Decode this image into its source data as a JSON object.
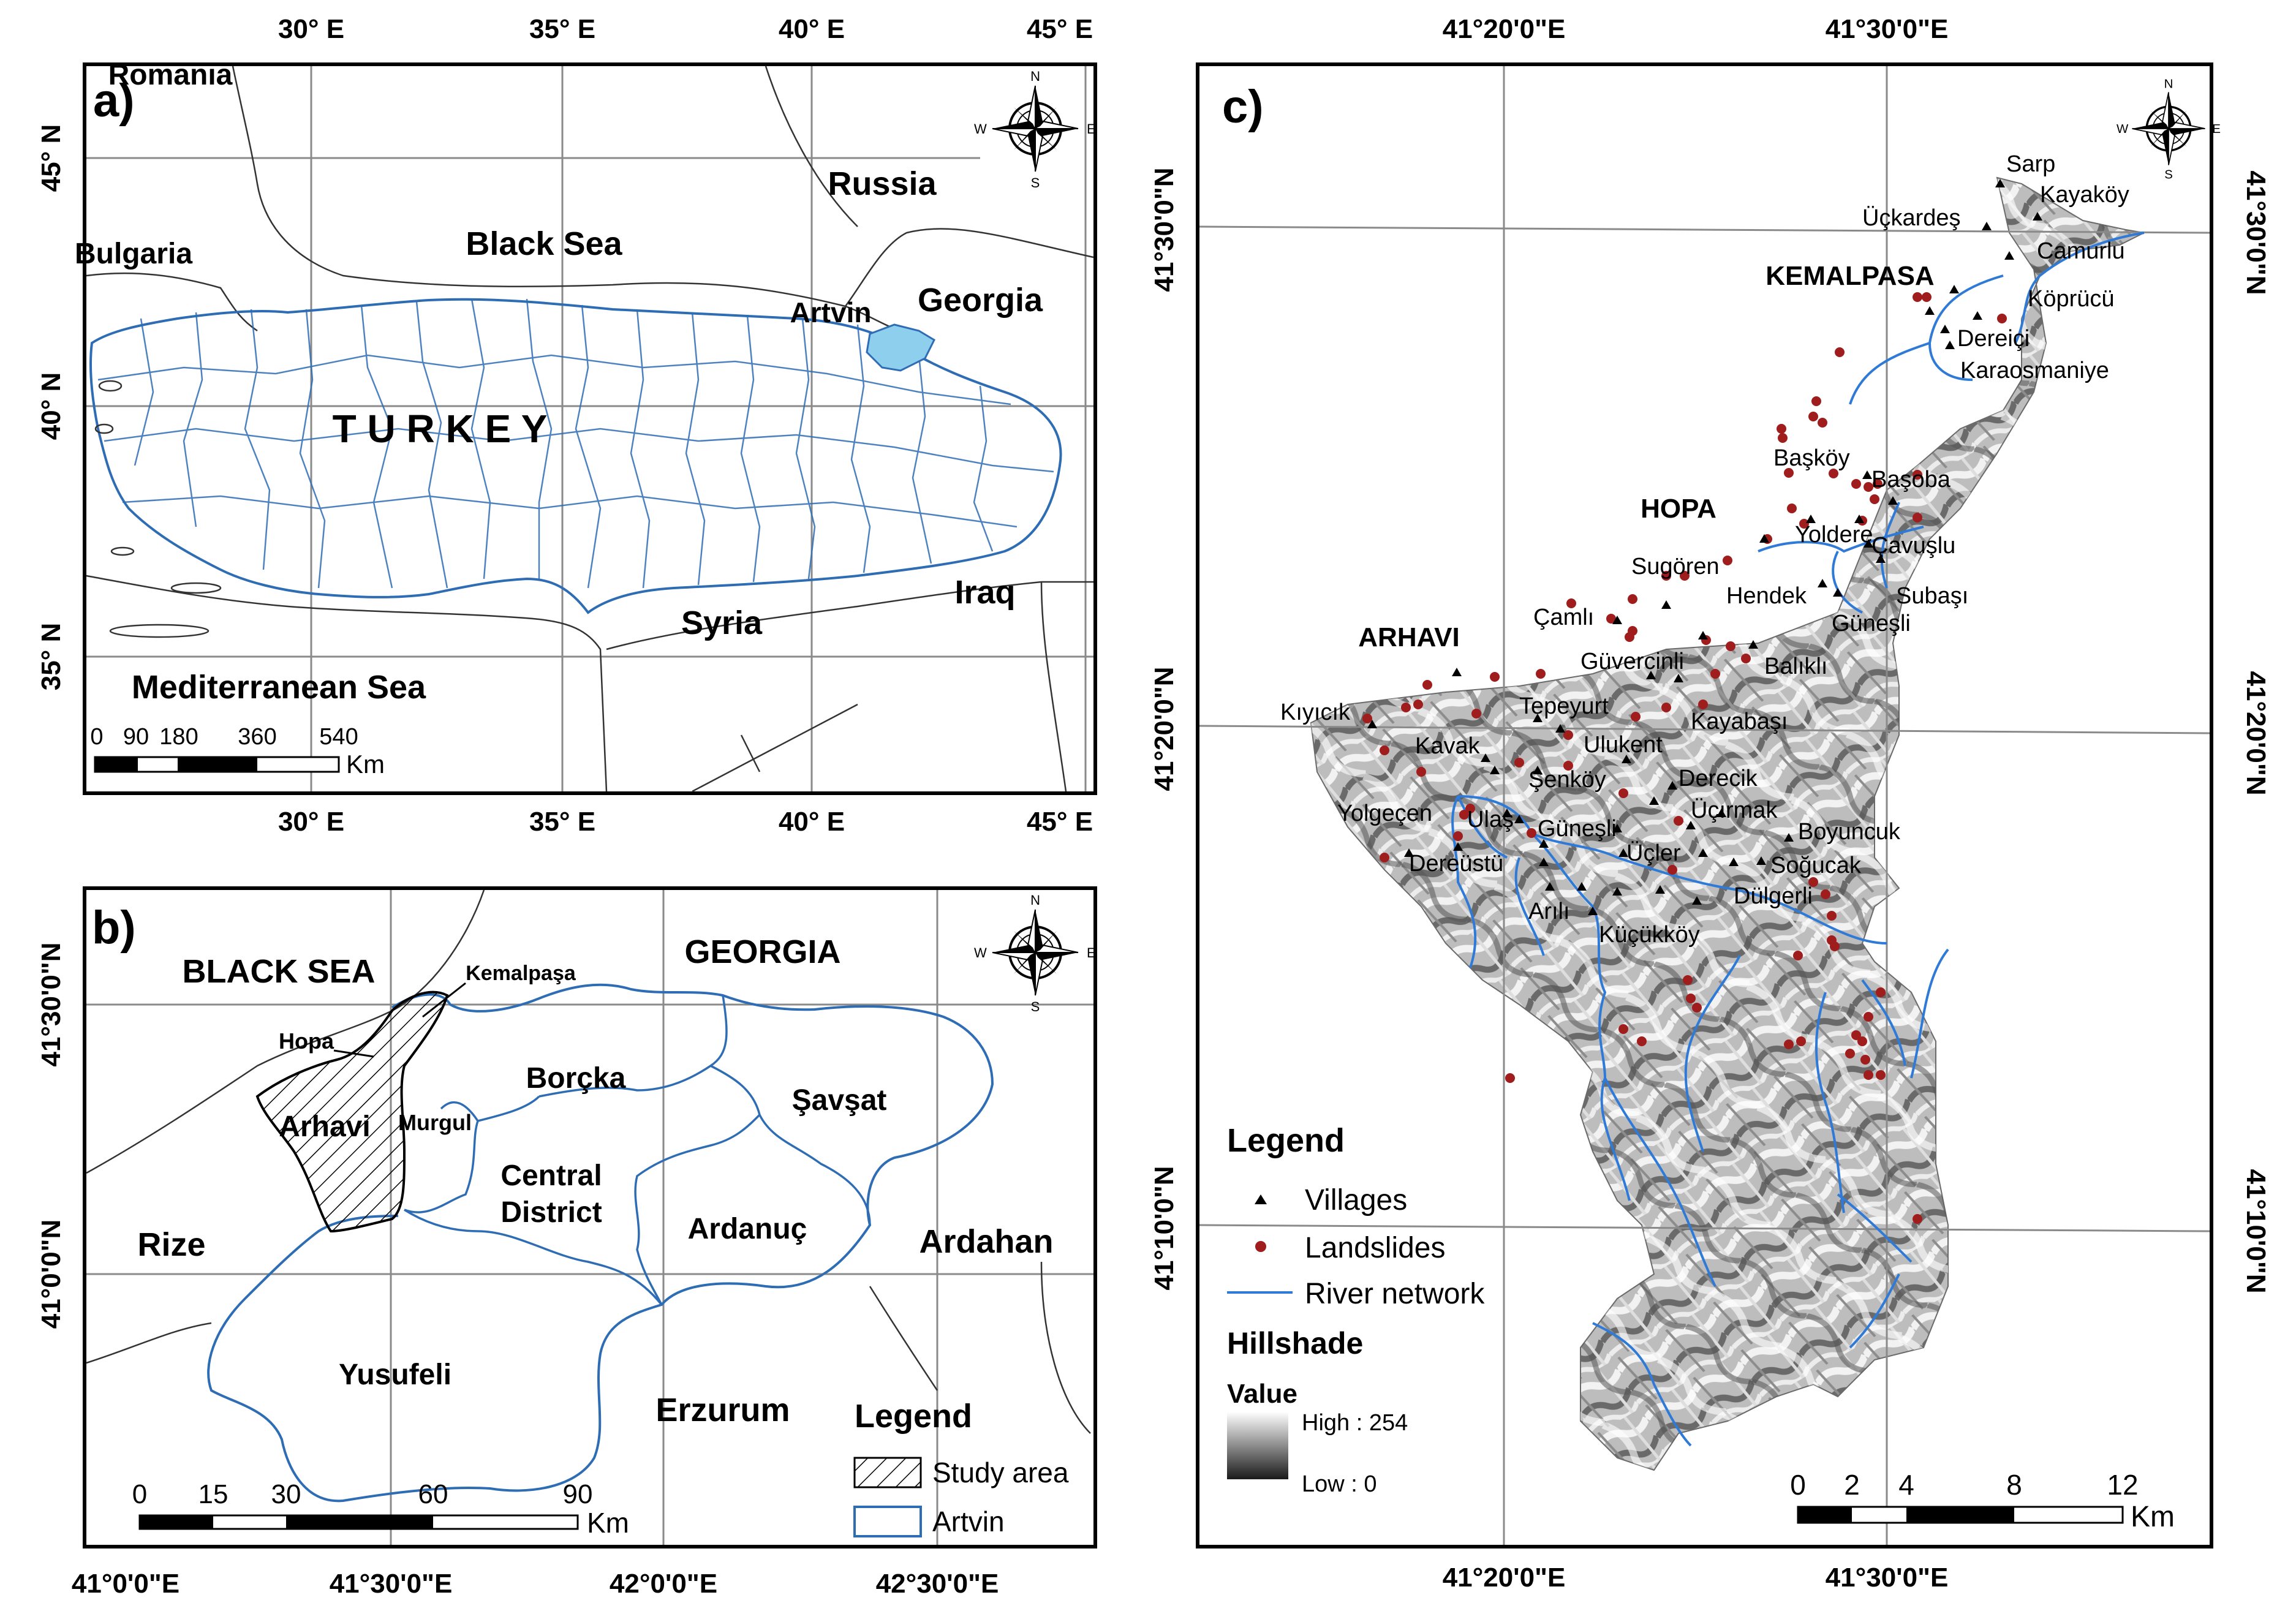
{
  "panel_a": {
    "label": "a)",
    "top_ticks": [
      "30° E",
      "35° E",
      "40° E",
      "45° E"
    ],
    "bottom_ticks": [
      "30° E",
      "35° E",
      "40° E",
      "45° E"
    ],
    "left_ticks": [
      "45° N",
      "40° N",
      "35° N"
    ],
    "places": {
      "romania": "Romania",
      "bulgaria": "Bulgaria",
      "black_sea": "Black Sea",
      "russia": "Russia",
      "artvin": "Artvin",
      "georgia": "Georgia",
      "turkey": "T U R K E Y",
      "syria": "Syria",
      "iraq": "Iraq",
      "mediterranean": "Mediterranean Sea"
    },
    "scale_values": [
      "0",
      "90",
      "180",
      "360",
      "540"
    ],
    "scale_unit": "Km"
  },
  "panel_b": {
    "label": "b)",
    "left_ticks": [
      "41°30'0\"N",
      "41°0'0\"N"
    ],
    "bottom_ticks": [
      "41°0'0\"E",
      "41°30'0\"E",
      "42°0'0\"E",
      "42°30'0\"E"
    ],
    "places": {
      "black_sea": "BLACK SEA",
      "kemalpasa": "Kemalpaşa",
      "georgia": "GEORGIA",
      "hopa": "Hopa",
      "borcka": "Borçka",
      "savsat": "Şavşat",
      "arhavi": "Arhavi",
      "murgul": "Murgul",
      "central": "Central",
      "district": "District",
      "ardanuc": "Ardanuç",
      "ardahan": "Ardahan",
      "rize": "Rize",
      "yusufeli": "Yusufeli",
      "erzurum": "Erzurum"
    },
    "legend": {
      "title": "Legend",
      "study_area": "Study area",
      "artvin": "Artvin"
    },
    "scale_values": [
      "0",
      "15",
      "30",
      "60",
      "90"
    ],
    "scale_unit": "Km"
  },
  "panel_c": {
    "label": "c)",
    "top_ticks": [
      "41°20'0\"E",
      "41°30'0\"E"
    ],
    "bottom_ticks": [
      "41°20'0\"E",
      "41°30'0\"E"
    ],
    "left_ticks": [
      "41°30'0\"N",
      "41°20'0\"N",
      "41°10'0\"N"
    ],
    "right_ticks": [
      "41°30'0\"N",
      "41°20'0\"N",
      "41°10'0\"N"
    ],
    "towns": {
      "kemalpasa": "KEMALPASA",
      "hopa": "HOPA",
      "arhavi": "ARHAVI"
    },
    "villages": [
      "Sarp",
      "Kayaköy",
      "Üçkardeş",
      "Camurlu",
      "Köprücü",
      "Dereiçi",
      "Karaosmaniye",
      "Başköy",
      "Başoba",
      "Yoldere",
      "Çavuşlu",
      "Sugören",
      "Hendek",
      "Subaşı",
      "Çamlı",
      "Güneşli",
      "Güvercinli",
      "Balıklı",
      "Kıyıcık",
      "Tepeyurt",
      "Kayabaşı",
      "Kavak",
      "Ulukent",
      "Şenköy",
      "Derecik",
      "Yolgeçen",
      "Ulaş",
      "Üçırmak",
      "Güneşli",
      "Boyuncuk",
      "Dereüstü",
      "Üçler",
      "Soğucak",
      "Arılı",
      "Dülgerli",
      "Küçükköy"
    ],
    "legend": {
      "title": "Legend",
      "villages": "Villages",
      "landslides": "Landslides",
      "rivers": "River network",
      "hillshade": "Hillshade",
      "value": "Value",
      "high": "High : 254",
      "low": "Low : 0"
    },
    "scale_values": [
      "0",
      "2",
      "4",
      "8",
      "12"
    ],
    "scale_unit": "Km"
  },
  "compass": {
    "n": "N",
    "s": "S",
    "e": "E",
    "w": "W"
  },
  "colors": {
    "artvin_fill": "#8ecfee",
    "border": "#2e6db4",
    "landslide": "#a01d1d",
    "village": "#000000"
  }
}
